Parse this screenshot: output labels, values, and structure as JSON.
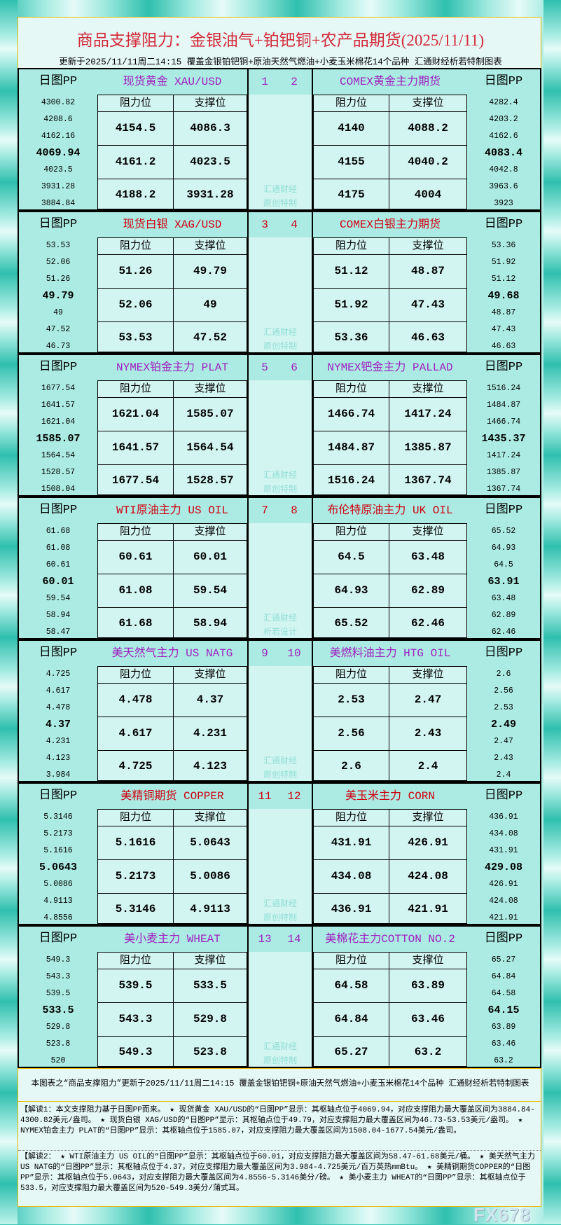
{
  "title": "商品支撑阻力：金银油气+铂钯铜+农产品期货(2025/11/11)",
  "subtitle": "更新于2025/11/11周二14:15  覆盖金银铂钯铜+原油天然气燃油+小麦玉米棉花14个品种  汇通财经析若特制图表",
  "pp_label": "日图PP",
  "resistance_label": "阻力位",
  "support_label": "支撑位",
  "colors": {
    "title": "#d42a3a",
    "purple": "#a020c0",
    "red": "#d00010",
    "header_bg": "#acebe3",
    "cell_bg": "#d3f5f1"
  },
  "sections": [
    {
      "color": "#a020c0",
      "nums": [
        "1",
        "2"
      ],
      "watermark": [
        "汇通财经",
        "原创特制"
      ],
      "left": {
        "name": "现货黄金 XAU/USD",
        "pp": [
          "4300.82",
          "4208.6",
          "4162.16",
          "4069.94",
          "4023.5",
          "3931.28",
          "3884.84"
        ],
        "rows": [
          [
            "4154.5",
            "4086.3"
          ],
          [
            "4161.2",
            "4023.5"
          ],
          [
            "4188.2",
            "3931.28"
          ]
        ]
      },
      "right": {
        "name": "COMEX黄金主力期货",
        "pp": [
          "4282.4",
          "4203.2",
          "4162.6",
          "4083.4",
          "4042.8",
          "3963.6",
          "3923"
        ],
        "rows": [
          [
            "4140",
            "4088.2"
          ],
          [
            "4155",
            "4040.2"
          ],
          [
            "4175",
            "4004"
          ]
        ]
      }
    },
    {
      "color": "#d00010",
      "nums": [
        "3",
        "4"
      ],
      "watermark": [
        "汇通财经",
        "原创特制"
      ],
      "left": {
        "name": "现货白银 XAG/USD",
        "pp": [
          "53.53",
          "52.06",
          "51.26",
          "49.79",
          "49",
          "47.52",
          "46.73"
        ],
        "rows": [
          [
            "51.26",
            "49.79"
          ],
          [
            "52.06",
            "49"
          ],
          [
            "53.53",
            "47.52"
          ]
        ]
      },
      "right": {
        "name": "COMEX白银主力期货",
        "pp": [
          "53.36",
          "51.92",
          "51.12",
          "49.68",
          "48.87",
          "47.43",
          "46.63"
        ],
        "rows": [
          [
            "51.12",
            "48.87"
          ],
          [
            "51.92",
            "47.43"
          ],
          [
            "53.36",
            "46.63"
          ]
        ]
      }
    },
    {
      "color": "#a020c0",
      "nums": [
        "5",
        "6"
      ],
      "watermark": [
        "汇通财经",
        "原创特制"
      ],
      "left": {
        "name": "NYMEX铂金主力 PLAT",
        "pp": [
          "1677.54",
          "1641.57",
          "1621.04",
          "1585.07",
          "1564.54",
          "1528.57",
          "1508.04"
        ],
        "rows": [
          [
            "1621.04",
            "1585.07"
          ],
          [
            "1641.57",
            "1564.54"
          ],
          [
            "1677.54",
            "1528.57"
          ]
        ]
      },
      "right": {
        "name": "NYMEX钯金主力 PALLAD",
        "pp": [
          "1516.24",
          "1484.87",
          "1466.74",
          "1435.37",
          "1417.24",
          "1385.87",
          "1367.74"
        ],
        "rows": [
          [
            "1466.74",
            "1417.24"
          ],
          [
            "1484.87",
            "1385.87"
          ],
          [
            "1516.24",
            "1367.74"
          ]
        ]
      }
    },
    {
      "color": "#d00010",
      "nums": [
        "7",
        "8"
      ],
      "watermark": [
        "汇通财经",
        "析若设计"
      ],
      "left": {
        "name": "WTI原油主力 US OIL",
        "pp": [
          "61.68",
          "61.08",
          "60.61",
          "60.01",
          "59.54",
          "58.94",
          "58.47"
        ],
        "rows": [
          [
            "60.61",
            "60.01"
          ],
          [
            "61.08",
            "59.54"
          ],
          [
            "61.68",
            "58.94"
          ]
        ]
      },
      "right": {
        "name": "布伦特原油主力 UK OIL",
        "pp": [
          "65.52",
          "64.93",
          "64.5",
          "63.91",
          "63.48",
          "62.89",
          "62.46"
        ],
        "rows": [
          [
            "64.5",
            "63.48"
          ],
          [
            "64.93",
            "62.89"
          ],
          [
            "65.52",
            "62.46"
          ]
        ]
      }
    },
    {
      "color": "#a020c0",
      "nums": [
        "9",
        "10"
      ],
      "watermark": [
        "汇通财经",
        "原创特制"
      ],
      "left": {
        "name": "美天然气主力 US NATG",
        "pp": [
          "4.725",
          "4.617",
          "4.478",
          "4.37",
          "4.231",
          "4.123",
          "3.984"
        ],
        "rows": [
          [
            "4.478",
            "4.37"
          ],
          [
            "4.617",
            "4.231"
          ],
          [
            "4.725",
            "4.123"
          ]
        ]
      },
      "right": {
        "name": "美燃料油主力 HTG OIL",
        "pp": [
          "2.6",
          "2.56",
          "2.53",
          "2.49",
          "2.47",
          "2.43",
          "2.4"
        ],
        "rows": [
          [
            "2.53",
            "2.47"
          ],
          [
            "2.56",
            "2.43"
          ],
          [
            "2.6",
            "2.4"
          ]
        ]
      }
    },
    {
      "color": "#d00010",
      "nums": [
        "11",
        "12"
      ],
      "watermark": [
        "汇通财经",
        "原创特制"
      ],
      "left": {
        "name": "美精铜期货 COPPER",
        "pp": [
          "5.3146",
          "5.2173",
          "5.1616",
          "5.0643",
          "5.0086",
          "4.9113",
          "4.8556"
        ],
        "rows": [
          [
            "5.1616",
            "5.0643"
          ],
          [
            "5.2173",
            "5.0086"
          ],
          [
            "5.3146",
            "4.9113"
          ]
        ]
      },
      "right": {
        "name": "美玉米主力 CORN",
        "pp": [
          "436.91",
          "434.08",
          "431.91",
          "429.08",
          "426.91",
          "424.08",
          "421.91"
        ],
        "rows": [
          [
            "431.91",
            "426.91"
          ],
          [
            "434.08",
            "424.08"
          ],
          [
            "436.91",
            "421.91"
          ]
        ]
      }
    },
    {
      "color": "#a020c0",
      "nums": [
        "13",
        "14"
      ],
      "watermark": [
        "汇通财经",
        "原创特制"
      ],
      "left": {
        "name": "美小麦主力 WHEAT",
        "pp": [
          "549.3",
          "543.3",
          "539.5",
          "533.5",
          "529.8",
          "523.8",
          "520"
        ],
        "rows": [
          [
            "539.5",
            "533.5"
          ],
          [
            "543.3",
            "529.8"
          ],
          [
            "549.3",
            "523.8"
          ]
        ]
      },
      "right": {
        "name": "美棉花主力COTTON NO.2",
        "pp": [
          "65.27",
          "64.84",
          "64.58",
          "64.15",
          "63.89",
          "63.46",
          "63.2"
        ],
        "rows": [
          [
            "64.58",
            "63.89"
          ],
          [
            "64.84",
            "63.46"
          ],
          [
            "65.27",
            "63.2"
          ]
        ]
      }
    }
  ],
  "caption": "本图表之“商品支撑阻力”更新于2025/11/11周二14:15  覆盖金银铂钯铜+原油天然气燃油+小麦玉米棉花14个品种  汇通财经析若特制图表",
  "note1": "【解读1：本文支撑阻力基于日图PP而来。 ★ 现货黄金 XAU/USD的“日图PP”显示：其枢轴点位于4069.94，对应支撑阻力最大覆盖区间为3884.84-4300.82美元/盎司。 ★ 现货白银 XAG/USD的“日图PP”显示：其枢轴点位于49.79，对应支撑阻力最大覆盖区间为46.73-53.53美元/盎司。 ★ NYMEX铂金主力 PLAT的“日图PP”显示：其枢轴点位于1585.07，对应支撑阻力最大覆盖区间为1508.04-1677.54美元/盎司。",
  "note2": "【解读2： ★ WTI原油主力 US OIL的“日图PP”显示：其枢轴点位于60.01，对应支撑阻力最大覆盖区间为58.47-61.68美元/桶。 ★ 美天然气主力 US NATG的“日图PP”显示：其枢轴点位于4.37，对应支撑阻力最大覆盖区间为3.984-4.725美元/百万英热mmBtu。 ★ 美精铜期货COPPER的“日图PP”显示：其枢轴点位于5.0643，对应支撑阻力最大覆盖区间为4.8556-5.3146美分/磅。 ★ 美小麦主力 WHEAT的“日图PP”显示：其枢轴点位于533.5，对应支撑阻力最大覆盖区间为520-549.3美分/蒲式耳。",
  "watermark_logo": "FX678"
}
